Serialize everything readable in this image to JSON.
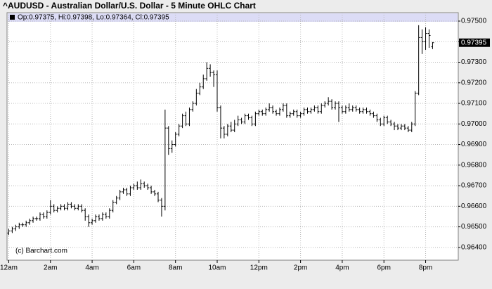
{
  "chart_data": {
    "type": "ohlc",
    "title": "^AUDUSD - Australian Dollar/U.S. Dollar - 5 Minute OHLC Chart",
    "subtitle": "Op:0.97375, Hi:0.97398, Lo:0.97364, Cl:0.97395",
    "credit": "(c) Barchart.com",
    "color": "#000000",
    "grid": true,
    "x": [
      0,
      10,
      20,
      30,
      40,
      50,
      60,
      70,
      80,
      90,
      100,
      110,
      120,
      130,
      140,
      150,
      160,
      170,
      180,
      190,
      200,
      210,
      220,
      230,
      240,
      250,
      260,
      270,
      280,
      290,
      300,
      310,
      320,
      330,
      340,
      350,
      360,
      370,
      380,
      390,
      400,
      410,
      420,
      430,
      440,
      450,
      460,
      470,
      480,
      490,
      500,
      510,
      520,
      530,
      540,
      550,
      560,
      570,
      580,
      590,
      600,
      610,
      620,
      630,
      640,
      650,
      660,
      670,
      680,
      690,
      700,
      710,
      720,
      730,
      740,
      750,
      760,
      770,
      780,
      790,
      800,
      810,
      820,
      830,
      840,
      850,
      860,
      870,
      880,
      890,
      900,
      910,
      920,
      930,
      940,
      950,
      960,
      970,
      980,
      990,
      1000,
      1010,
      1020,
      1030,
      1040,
      1050,
      1060,
      1070,
      1080,
      1090,
      1100,
      1110,
      1120,
      1130,
      1140,
      1150,
      1160,
      1170,
      1180,
      1190,
      1200,
      1210,
      1220
    ],
    "open": [
      0.9647,
      0.9648,
      0.9649,
      0.965,
      0.9651,
      0.9651,
      0.9652,
      0.9653,
      0.9654,
      0.9654,
      0.9656,
      0.9655,
      0.9657,
      0.966,
      0.9658,
      0.9659,
      0.966,
      0.9659,
      0.9661,
      0.966,
      0.9659,
      0.966,
      0.9658,
      0.9655,
      0.9652,
      0.9653,
      0.9655,
      0.9654,
      0.9656,
      0.9655,
      0.9658,
      0.9662,
      0.9664,
      0.9667,
      0.9668,
      0.9666,
      0.9669,
      0.967,
      0.9669,
      0.9671,
      0.967,
      0.9669,
      0.9667,
      0.9666,
      0.9663,
      0.966,
      0.9698,
      0.9688,
      0.969,
      0.9695,
      0.9699,
      0.9704,
      0.97,
      0.9707,
      0.971,
      0.9715,
      0.9718,
      0.9722,
      0.9727,
      0.9725,
      0.9724,
      0.9708,
      0.9698,
      0.9695,
      0.9699,
      0.9697,
      0.97,
      0.9702,
      0.9701,
      0.9704,
      0.9703,
      0.97,
      0.9705,
      0.9706,
      0.9705,
      0.9707,
      0.9708,
      0.9706,
      0.9705,
      0.9707,
      0.9709,
      0.9704,
      0.9705,
      0.9706,
      0.9704,
      0.9705,
      0.9707,
      0.9706,
      0.9707,
      0.9708,
      0.9706,
      0.9709,
      0.971,
      0.9711,
      0.9708,
      0.971,
      0.9708,
      0.9706,
      0.9708,
      0.9707,
      0.9708,
      0.9707,
      0.9706,
      0.9707,
      0.9706,
      0.9705,
      0.9704,
      0.9702,
      0.97,
      0.9703,
      0.9701,
      0.97,
      0.9699,
      0.9698,
      0.9699,
      0.9698,
      0.9697,
      0.97,
      0.9715,
      0.9742,
      0.974,
      0.9744,
      0.97375
    ],
    "high": [
      0.9649,
      0.965,
      0.9651,
      0.9652,
      0.9652,
      0.9653,
      0.9654,
      0.9655,
      0.9655,
      0.9657,
      0.9657,
      0.9658,
      0.9663,
      0.9661,
      0.966,
      0.9661,
      0.9661,
      0.9662,
      0.9662,
      0.9661,
      0.9661,
      0.9661,
      0.9659,
      0.9656,
      0.9654,
      0.9656,
      0.9656,
      0.9657,
      0.9657,
      0.9659,
      0.9663,
      0.9665,
      0.9668,
      0.9669,
      0.9669,
      0.967,
      0.9671,
      0.9672,
      0.9673,
      0.9672,
      0.9671,
      0.967,
      0.9668,
      0.9667,
      0.9664,
      0.9707,
      0.9699,
      0.9692,
      0.9696,
      0.97,
      0.9705,
      0.9706,
      0.9708,
      0.9711,
      0.9717,
      0.972,
      0.9724,
      0.973,
      0.9729,
      0.9726,
      0.9726,
      0.9709,
      0.9699,
      0.97,
      0.9701,
      0.9702,
      0.9704,
      0.9703,
      0.9705,
      0.9705,
      0.9704,
      0.9706,
      0.9707,
      0.9707,
      0.9708,
      0.971,
      0.9709,
      0.9707,
      0.9708,
      0.971,
      0.971,
      0.9706,
      0.9707,
      0.9707,
      0.9706,
      0.9708,
      0.9708,
      0.9708,
      0.9709,
      0.9709,
      0.971,
      0.9711,
      0.9713,
      0.9712,
      0.9711,
      0.9711,
      0.9709,
      0.9709,
      0.971,
      0.9709,
      0.9709,
      0.9708,
      0.9708,
      0.9708,
      0.9707,
      0.9706,
      0.9705,
      0.9703,
      0.9704,
      0.9704,
      0.9702,
      0.9701,
      0.97,
      0.97,
      0.97,
      0.9699,
      0.9701,
      0.9716,
      0.9748,
      0.9746,
      0.9747,
      0.9746,
      0.97398
    ],
    "low": [
      0.9646,
      0.9647,
      0.9648,
      0.9649,
      0.965,
      0.965,
      0.9651,
      0.9652,
      0.9653,
      0.9653,
      0.9654,
      0.9654,
      0.9656,
      0.9657,
      0.9657,
      0.9658,
      0.9658,
      0.9658,
      0.9659,
      0.9658,
      0.9658,
      0.9657,
      0.9653,
      0.965,
      0.9651,
      0.9652,
      0.9653,
      0.9653,
      0.9654,
      0.9654,
      0.9657,
      0.9661,
      0.9663,
      0.9666,
      0.9665,
      0.9665,
      0.9668,
      0.9668,
      0.9668,
      0.9669,
      0.9668,
      0.9666,
      0.9665,
      0.9662,
      0.9655,
      0.9658,
      0.9685,
      0.9686,
      0.9689,
      0.9694,
      0.9698,
      0.9699,
      0.9699,
      0.9706,
      0.9709,
      0.9714,
      0.9717,
      0.9721,
      0.9723,
      0.9718,
      0.9706,
      0.9693,
      0.9693,
      0.9694,
      0.9696,
      0.9696,
      0.9699,
      0.97,
      0.97,
      0.9702,
      0.9699,
      0.9699,
      0.9704,
      0.9704,
      0.9704,
      0.9706,
      0.9705,
      0.9704,
      0.9704,
      0.9706,
      0.9703,
      0.9703,
      0.9704,
      0.9703,
      0.9703,
      0.9704,
      0.9705,
      0.9705,
      0.9706,
      0.9705,
      0.9705,
      0.9708,
      0.9709,
      0.9707,
      0.9707,
      0.9701,
      0.9705,
      0.9705,
      0.9706,
      0.9706,
      0.9706,
      0.9705,
      0.9705,
      0.9705,
      0.9704,
      0.9703,
      0.9701,
      0.9699,
      0.9699,
      0.97,
      0.9699,
      0.9697,
      0.9697,
      0.9697,
      0.9697,
      0.9696,
      0.9696,
      0.9699,
      0.9714,
      0.9734,
      0.9736,
      0.9737,
      0.97364
    ],
    "close": [
      0.9648,
      0.9649,
      0.965,
      0.9651,
      0.9651,
      0.9652,
      0.9653,
      0.9654,
      0.9654,
      0.9656,
      0.9655,
      0.9657,
      0.966,
      0.9658,
      0.9659,
      0.966,
      0.9659,
      0.9661,
      0.966,
      0.9659,
      0.966,
      0.9658,
      0.9655,
      0.9652,
      0.9653,
      0.9655,
      0.9654,
      0.9656,
      0.9655,
      0.9658,
      0.9662,
      0.9664,
      0.9667,
      0.9668,
      0.9666,
      0.9669,
      0.967,
      0.9669,
      0.9671,
      0.967,
      0.9669,
      0.9667,
      0.9666,
      0.9663,
      0.966,
      0.9698,
      0.9688,
      0.969,
      0.9695,
      0.9699,
      0.9704,
      0.97,
      0.9707,
      0.971,
      0.9715,
      0.9718,
      0.9722,
      0.9727,
      0.9725,
      0.9724,
      0.9708,
      0.9698,
      0.9695,
      0.9699,
      0.9697,
      0.97,
      0.9702,
      0.9701,
      0.9704,
      0.9703,
      0.97,
      0.9705,
      0.9706,
      0.9705,
      0.9707,
      0.9708,
      0.9706,
      0.9705,
      0.9707,
      0.9709,
      0.9704,
      0.9705,
      0.9706,
      0.9704,
      0.9705,
      0.9707,
      0.9706,
      0.9707,
      0.9708,
      0.9706,
      0.9709,
      0.971,
      0.9711,
      0.9708,
      0.971,
      0.9708,
      0.9706,
      0.9708,
      0.9707,
      0.9708,
      0.9707,
      0.9706,
      0.9707,
      0.9706,
      0.9705,
      0.9704,
      0.9702,
      0.97,
      0.9703,
      0.9701,
      0.97,
      0.9699,
      0.9698,
      0.9699,
      0.9698,
      0.9697,
      0.97,
      0.9715,
      0.9742,
      0.974,
      0.9744,
      0.9743,
      0.97395
    ],
    "xlim": [
      -5,
      1294
    ],
    "ylim": [
      0.96338,
      0.97541
    ],
    "xticks": [
      {
        "value": 0,
        "label": "12am"
      },
      {
        "value": 120,
        "label": "2am"
      },
      {
        "value": 240,
        "label": "4am"
      },
      {
        "value": 360,
        "label": "6am"
      },
      {
        "value": 480,
        "label": "8am"
      },
      {
        "value": 600,
        "label": "10am"
      },
      {
        "value": 720,
        "label": "12pm"
      },
      {
        "value": 840,
        "label": "2pm"
      },
      {
        "value": 960,
        "label": "4pm"
      },
      {
        "value": 1080,
        "label": "6pm"
      },
      {
        "value": 1200,
        "label": "8pm"
      }
    ],
    "yticks": [
      {
        "value": 0.964,
        "label": "0.96400"
      },
      {
        "value": 0.965,
        "label": "0.96500"
      },
      {
        "value": 0.966,
        "label": "0.96600"
      },
      {
        "value": 0.967,
        "label": "0.96700"
      },
      {
        "value": 0.968,
        "label": "0.96800"
      },
      {
        "value": 0.969,
        "label": "0.96900"
      },
      {
        "value": 0.97,
        "label": "0.97000"
      },
      {
        "value": 0.971,
        "label": "0.97100"
      },
      {
        "value": 0.972,
        "label": "0.97200"
      },
      {
        "value": 0.973,
        "label": "0.97300"
      },
      {
        "value": 0.974,
        "label": "0.97400"
      },
      {
        "value": 0.975,
        "label": "0.97500"
      }
    ]
  }
}
